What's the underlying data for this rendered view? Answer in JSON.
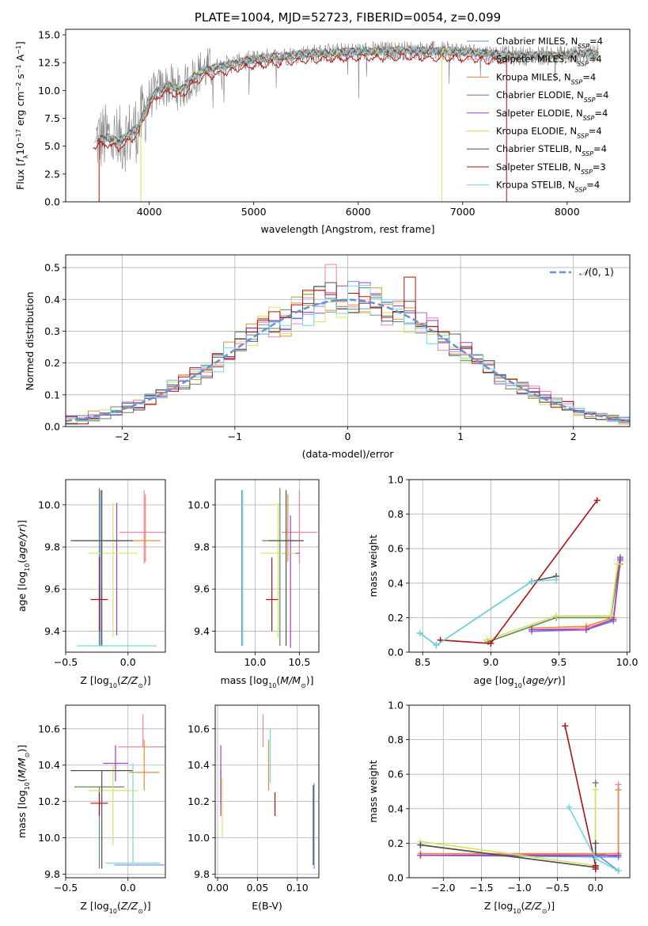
{
  "colors": {
    "chabrier_miles": "#6b8fd6",
    "salpeter_miles": "#f080b0",
    "kroupa_miles": "#e88a3a",
    "chabrier_elodie": "#5b8a5b",
    "salpeter_elodie": "#a040c0",
    "kroupa_elodie": "#d8e060",
    "chabrier_stelib": "#505050",
    "salpeter_stelib": "#b01010",
    "kroupa_stelib": "#70d8e0",
    "gaussian": "#6a8fd8",
    "spectrum_gray": "#808080"
  },
  "series_names": [
    "Chabrier MILES, N_SSP=4",
    "Salpeter MILES, N_SSP=4",
    "Kroupa MILES, N_SSP=4",
    "Chabrier ELODIE, N_SSP=4",
    "Salpeter ELODIE, N_SSP=4",
    "Kroupa ELODIE, N_SSP=4",
    "Chabrier STELIB, N_SSP=4",
    "Salpeter STELIB, N_SSP=3",
    "Kroupa STELIB, N_SSP=4"
  ],
  "chart_data": [
    {
      "id": "spectrum",
      "type": "line",
      "title": "PLATE=1004, MJD=52723, FIBERID=0054, z=0.099",
      "xlabel": "wavelength [Angstrom, rest frame]",
      "ylabel": "Flux [f_λ 10^-17 erg cm^-2 s^-1 A^-1]",
      "xlim": [
        3200,
        8600
      ],
      "ylim": [
        0,
        15.5
      ],
      "xticks": [
        4000,
        5000,
        6000,
        7000,
        8000
      ],
      "yticks": [
        0.0,
        2.5,
        5.0,
        7.5,
        10.0,
        12.5,
        15.0
      ],
      "grid": false,
      "legend": "top-right",
      "continuum": {
        "x": [
          3450,
          3600,
          3700,
          3800,
          3900,
          4000,
          4100,
          4200,
          4300,
          4400,
          4500,
          4700,
          5000,
          5500,
          6000,
          6500,
          7000,
          7500,
          8000,
          8300
        ],
        "y": [
          5.5,
          5.8,
          5.4,
          6.0,
          6.8,
          9.2,
          10.2,
          10.5,
          10.0,
          11.0,
          11.8,
          12.2,
          12.8,
          13.3,
          13.5,
          13.6,
          13.5,
          13.1,
          13.2,
          13.4
        ]
      }
    },
    {
      "id": "residuals",
      "type": "histogram",
      "xlabel": "(data-model)/error",
      "ylabel": "Normed distribution",
      "xlim": [
        -2.5,
        2.5
      ],
      "ylim": [
        0,
        0.54
      ],
      "xticks": [
        -2,
        -1,
        0,
        1,
        2
      ],
      "yticks": [
        0.0,
        0.1,
        0.2,
        0.3,
        0.4,
        0.5
      ],
      "grid": true,
      "legend": "top-right",
      "legend_label": "N(0, 1)",
      "bin_width": 0.1
    },
    {
      "id": "age_vs_Z",
      "type": "errorbar",
      "xlabel": "Z [log10(Z/Z⊙)]",
      "ylabel": "age  [log10(age/yr)]",
      "xlim": [
        -0.5,
        0.3
      ],
      "ylim": [
        9.3,
        10.12
      ],
      "xticks": [
        -0.5,
        0.0
      ],
      "yticks": [
        9.4,
        9.6,
        9.8,
        10.0
      ],
      "grid": true,
      "points": [
        {
          "series": 0,
          "x": -0.22,
          "y": 9.33,
          "xerr": 0.02,
          "yerr": [
            0.0,
            0.74
          ]
        },
        {
          "series": 1,
          "x": 0.13,
          "y": 9.87,
          "xerr": 0.2,
          "yerr": [
            0.15,
            0.2
          ]
        },
        {
          "series": 2,
          "x": 0.14,
          "y": 9.83,
          "xerr": 0.12,
          "yerr": [
            0.1,
            0.22
          ]
        },
        {
          "series": 3,
          "x": -0.23,
          "y": 9.83,
          "xerr": 0.2,
          "yerr": [
            0.5,
            0.25
          ]
        },
        {
          "series": 4,
          "x": -0.09,
          "y": 9.83,
          "xerr": 0.1,
          "yerr": [
            0.45,
            0.18
          ]
        },
        {
          "series": 5,
          "x": -0.12,
          "y": 9.77,
          "xerr": 0.2,
          "yerr": [
            0.4,
            0.24
          ]
        },
        {
          "series": 6,
          "x": -0.21,
          "y": 9.83,
          "xerr": 0.25,
          "yerr": [
            0.5,
            0.24
          ]
        },
        {
          "series": 7,
          "x": -0.23,
          "y": 9.55,
          "xerr": 0.07,
          "yerr": [
            0.15,
            0.2
          ]
        },
        {
          "series": 8,
          "x": -0.09,
          "y": 9.33,
          "xerr": 0.32,
          "yerr": [
            0.0,
            0.0
          ]
        }
      ]
    },
    {
      "id": "age_vs_mass",
      "type": "errorbar",
      "xlabel": "mass [log10(M/M⊙)]",
      "ylabel": "",
      "xlim": [
        9.55,
        10.72
      ],
      "ylim": [
        9.3,
        10.12
      ],
      "xticks": [
        10.0,
        10.5
      ],
      "yticks": [
        9.4,
        9.6,
        9.8,
        10.0
      ],
      "grid": true,
      "points": [
        {
          "series": 0,
          "x": 9.85,
          "y": 9.33,
          "xerr": 0.0,
          "yerr": [
            0.0,
            0.74
          ]
        },
        {
          "series": 1,
          "x": 10.5,
          "y": 9.87,
          "xerr": 0.2,
          "yerr": [
            0.15,
            0.2
          ]
        },
        {
          "series": 2,
          "x": 10.37,
          "y": 9.83,
          "xerr": 0.12,
          "yerr": [
            0.1,
            0.22
          ]
        },
        {
          "series": 3,
          "x": 10.28,
          "y": 9.83,
          "xerr": 0.2,
          "yerr": [
            0.5,
            0.25
          ]
        },
        {
          "series": 4,
          "x": 10.4,
          "y": 9.77,
          "xerr": 0.1,
          "yerr": [
            0.45,
            0.18
          ]
        },
        {
          "series": 5,
          "x": 10.26,
          "y": 9.77,
          "xerr": 0.2,
          "yerr": [
            0.4,
            0.24
          ]
        },
        {
          "series": 6,
          "x": 10.35,
          "y": 9.83,
          "xerr": 0.2,
          "yerr": [
            0.5,
            0.24
          ]
        },
        {
          "series": 7,
          "x": 10.19,
          "y": 9.55,
          "xerr": 0.07,
          "yerr": [
            0.15,
            0.2
          ]
        },
        {
          "series": 8,
          "x": 9.86,
          "y": 9.33,
          "xerr": 0.0,
          "yerr": [
            0.0,
            0.74
          ]
        }
      ]
    },
    {
      "id": "weight_vs_age",
      "type": "line",
      "xlabel": "age  [log10(age/yr)]",
      "ylabel": "mass weight",
      "xlim": [
        8.4,
        10.02
      ],
      "ylim": [
        0,
        1.0
      ],
      "xticks": [
        8.5,
        9.0,
        9.5,
        10.0
      ],
      "yticks": [
        0.0,
        0.2,
        0.4,
        0.6,
        0.8,
        1.0
      ],
      "grid": true,
      "series": [
        {
          "x": [
            9.3,
            9.7,
            9.9,
            9.95
          ],
          "y": [
            0.12,
            0.13,
            0.18,
            0.53
          ]
        },
        {
          "x": [
            9.3,
            9.7,
            9.9,
            9.95
          ],
          "y": [
            0.13,
            0.14,
            0.19,
            0.54
          ]
        },
        {
          "x": [
            9.3,
            9.7,
            9.9,
            9.95
          ],
          "y": [
            0.14,
            0.15,
            0.2,
            0.51
          ]
        },
        {
          "x": [
            8.98,
            9.48,
            9.88,
            9.95
          ],
          "y": [
            0.06,
            0.2,
            0.2,
            0.55
          ]
        },
        {
          "x": [
            9.3,
            9.7,
            9.9,
            9.95
          ],
          "y": [
            0.13,
            0.13,
            0.19,
            0.54
          ]
        },
        {
          "x": [
            8.97,
            9.48,
            9.88,
            9.93
          ],
          "y": [
            0.07,
            0.21,
            0.21,
            0.51
          ]
        },
        {
          "x": [
            8.48,
            8.6,
            9.3,
            9.48
          ],
          "y": [
            0.11,
            0.04,
            0.41,
            0.44
          ]
        },
        {
          "x": [
            8.63,
            9.0,
            9.78
          ],
          "y": [
            0.07,
            0.05,
            0.88
          ]
        },
        {
          "x": [
            8.48,
            8.6,
            9.3,
            9.48
          ],
          "y": [
            0.11,
            0.04,
            0.41,
            0.42
          ]
        }
      ]
    },
    {
      "id": "mass_vs_Z",
      "type": "errorbar",
      "xlabel": "Z [log10(Z/Z⊙)]",
      "ylabel": "mass [log10(M/M⊙)]",
      "xlim": [
        -0.5,
        0.3
      ],
      "ylim": [
        9.78,
        10.73
      ],
      "xticks": [
        -0.5,
        0.0
      ],
      "yticks": [
        9.8,
        10.0,
        10.2,
        10.4,
        10.6
      ],
      "grid": true,
      "points": [
        {
          "series": 0,
          "x": 0.09,
          "y": 9.85,
          "xerr": 0.2,
          "yerr": [
            0.0,
            0.0
          ]
        },
        {
          "series": 1,
          "x": 0.12,
          "y": 10.5,
          "xerr": 0.2,
          "yerr": [
            0.0,
            0.18
          ]
        },
        {
          "series": 2,
          "x": 0.13,
          "y": 10.36,
          "xerr": 0.12,
          "yerr": [
            0.1,
            0.18
          ]
        },
        {
          "series": 3,
          "x": -0.23,
          "y": 10.28,
          "xerr": 0.2,
          "yerr": [
            0.45,
            0.0
          ]
        },
        {
          "series": 4,
          "x": -0.1,
          "y": 10.41,
          "xerr": 0.1,
          "yerr": [
            0.1,
            0.1
          ]
        },
        {
          "series": 5,
          "x": -0.12,
          "y": 10.26,
          "xerr": 0.2,
          "yerr": [
            0.3,
            0.14
          ]
        },
        {
          "series": 6,
          "x": -0.21,
          "y": 10.37,
          "xerr": 0.25,
          "yerr": [
            0.54,
            0.0
          ]
        },
        {
          "series": 7,
          "x": -0.23,
          "y": 10.19,
          "xerr": 0.07,
          "yerr": [
            0.07,
            0.06
          ]
        },
        {
          "series": 8,
          "x": 0.04,
          "y": 9.86,
          "xerr": 0.22,
          "yerr": [
            0.0,
            0.55
          ]
        }
      ]
    },
    {
      "id": "mass_vs_ebv",
      "type": "errorbar",
      "xlabel": "E(B-V)",
      "ylabel": "",
      "xlim": [
        -0.003,
        0.127
      ],
      "ylim": [
        9.78,
        10.73
      ],
      "xticks": [
        0.0,
        0.05,
        0.1
      ],
      "yticks": [
        9.8,
        10.0,
        10.2,
        10.4,
        10.6
      ],
      "grid": true,
      "points": [
        {
          "series": 0,
          "x": 0.121,
          "y": 9.85,
          "xerr": 0.0,
          "yerr": [
            0.02,
            0.45
          ]
        },
        {
          "series": 1,
          "x": 0.057,
          "y": 10.5,
          "xerr": 0.0,
          "yerr": [
            0.0,
            0.18
          ]
        },
        {
          "series": 2,
          "x": 0.064,
          "y": 10.36,
          "xerr": 0.0,
          "yerr": [
            0.1,
            0.18
          ]
        },
        {
          "series": 3,
          "x": 0.004,
          "y": 10.28,
          "xerr": 0.0,
          "yerr": [
            0.1,
            0.1
          ]
        },
        {
          "series": 4,
          "x": 0.004,
          "y": 10.3,
          "xerr": 0.0,
          "yerr": [
            0.18,
            0.21
          ]
        },
        {
          "series": 5,
          "x": 0.006,
          "y": 10.18,
          "xerr": 0.0,
          "yerr": [
            0.18,
            0.15
          ]
        },
        {
          "series": 6,
          "x": 0.12,
          "y": 10.0,
          "xerr": 0.0,
          "yerr": [
            0.15,
            0.29
          ]
        },
        {
          "series": 7,
          "x": 0.072,
          "y": 10.19,
          "xerr": 0.0,
          "yerr": [
            0.07,
            0.06
          ]
        },
        {
          "series": 8,
          "x": 0.066,
          "y": 10.4,
          "xerr": 0.0,
          "yerr": [
            0.1,
            0.2
          ]
        }
      ]
    },
    {
      "id": "weight_vs_Z",
      "type": "line",
      "xlabel": "Z [log10(Z/Z⊙)]",
      "ylabel": "mass weight",
      "xlim": [
        -2.45,
        0.45
      ],
      "ylim": [
        0,
        1.0
      ],
      "xticks": [
        -2.0,
        -1.5,
        -1.0,
        -0.5,
        0.0
      ],
      "yticks": [
        0.0,
        0.2,
        0.4,
        0.6,
        0.8,
        1.0
      ],
      "grid": true,
      "series": [
        {
          "x": [
            -2.3,
            0.3,
            0.0,
            0.3
          ],
          "y": [
            0.13,
            0.12,
            0.14,
            0.04
          ]
        },
        {
          "x": [
            -2.3,
            0.3,
            0.3
          ],
          "y": [
            0.13,
            0.14,
            0.54
          ]
        },
        {
          "x": [
            -2.3,
            0.3,
            0.3
          ],
          "y": [
            0.14,
            0.14,
            0.51
          ]
        },
        {
          "x": [
            -2.3,
            0.0,
            0.0
          ],
          "y": [
            0.19,
            0.06,
            0.55
          ]
        },
        {
          "x": [
            -2.3,
            0.3
          ],
          "y": [
            0.13,
            0.13
          ]
        },
        {
          "x": [
            -2.3,
            0.0,
            0.0
          ],
          "y": [
            0.21,
            0.07,
            0.51
          ]
        },
        {
          "x": [
            -2.3,
            0.0,
            0.0
          ],
          "y": [
            0.19,
            0.06,
            0.2
          ]
        },
        {
          "x": [
            -0.4,
            0.0,
            0.0
          ],
          "y": [
            0.88,
            0.07,
            0.05
          ]
        },
        {
          "x": [
            -0.35,
            0.0,
            0.3
          ],
          "y": [
            0.41,
            0.11,
            0.04
          ]
        }
      ]
    }
  ]
}
